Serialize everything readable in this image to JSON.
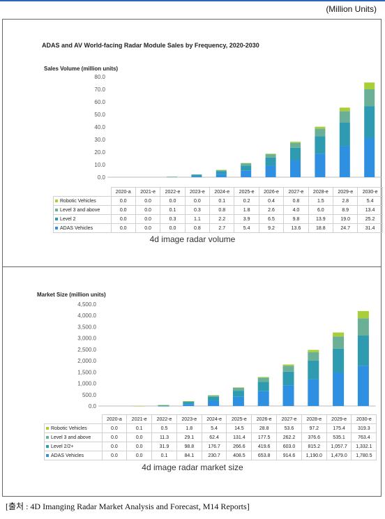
{
  "header": {
    "units": "(Million Units)"
  },
  "source": "[출처 : 4D Imanging Radar Market Analysis and Forecast, M14 Reports]",
  "colors": {
    "robotic": "#a8cf3a",
    "level3": "#6bb096",
    "level2": "#2f9bb0",
    "adas": "#2f8fe0"
  },
  "chart_data": [
    {
      "type": "bar",
      "stacked": true,
      "title": "ADAS and AV World-facing Radar Module Sales by Frequency, 2020-2030",
      "ylabel": "Sales Volume (million units)",
      "ylim": [
        0,
        80
      ],
      "yticks": [
        "0.0",
        "10.0",
        "20.0",
        "30.0",
        "40.0",
        "50.0",
        "60.0",
        "70.0",
        "80.0"
      ],
      "grid": false,
      "legend": "table-left",
      "categories": [
        "2020-a",
        "2021-e",
        "2022-e",
        "2023-e",
        "2024-e",
        "2025-e",
        "2026-e",
        "2027-e",
        "2028-e",
        "2029-e",
        "2030-e"
      ],
      "series": [
        {
          "name": "Robotic Vehicles",
          "values": [
            0.0,
            0.0,
            0.0,
            0.0,
            0.1,
            0.2,
            0.4,
            0.8,
            1.5,
            2.8,
            5.4
          ],
          "labels": [
            "0.0",
            "0.0",
            "0.0",
            "0.0",
            "0.1",
            "0.2",
            "0.4",
            "0.8",
            "1.5",
            "2.8",
            "5.4"
          ]
        },
        {
          "name": "Level 3 and above",
          "values": [
            0.0,
            0.0,
            0.1,
            0.3,
            0.8,
            1.8,
            2.6,
            4.0,
            6.0,
            8.9,
            13.4
          ],
          "labels": [
            "0.0",
            "0.0",
            "0.1",
            "0.3",
            "0.8",
            "1.8",
            "2.6",
            "4.0",
            "6.0",
            "8.9",
            "13.4"
          ]
        },
        {
          "name": "Level 2",
          "values": [
            0.0,
            0.0,
            0.3,
            1.1,
            2.2,
            3.9,
            6.5,
            9.8,
            13.9,
            19.0,
            25.2
          ],
          "labels": [
            "0.0",
            "0.0",
            "0.3",
            "1.1",
            "2.2",
            "3.9",
            "6.5",
            "9.8",
            "13.9",
            "19.0",
            "25.2"
          ]
        },
        {
          "name": "ADAS Vehicles",
          "values": [
            0.0,
            0.0,
            0.0,
            0.8,
            2.7,
            5.4,
            9.2,
            13.6,
            18.8,
            24.7,
            31.4
          ],
          "labels": [
            "0.0",
            "0.0",
            "0.0",
            "0.8",
            "2.7",
            "5.4",
            "9.2",
            "13.6",
            "18.8",
            "24.7",
            "31.4"
          ]
        }
      ],
      "caption": "4d image radar volume"
    },
    {
      "type": "bar",
      "stacked": true,
      "ylabel": "Market Size (million units)",
      "ylim": [
        0,
        4500
      ],
      "yticks": [
        "0.0",
        "500.0",
        "1,000.0",
        "1,500.0",
        "2,000.0",
        "2,500.0",
        "3,000.0",
        "3,500.0",
        "4,000.0",
        "4,500.0"
      ],
      "grid": false,
      "legend": "table-left",
      "categories": [
        "2020-a",
        "2021-e",
        "2022-e",
        "2023-e",
        "2024-e",
        "2025-e",
        "2026-e",
        "2027-e",
        "2028-e",
        "2029-e",
        "2030-e"
      ],
      "series": [
        {
          "name": "Robotic Vehicles",
          "values": [
            0.0,
            0.1,
            0.5,
            1.8,
            5.4,
            14.5,
            28.8,
            53.6,
            97.2,
            175.4,
            319.3
          ],
          "labels": [
            "0.0",
            "0.1",
            "0.5",
            "1.8",
            "5.4",
            "14.5",
            "28.8",
            "53.6",
            "97.2",
            "175.4",
            "319.3"
          ]
        },
        {
          "name": "Level 3 and above",
          "values": [
            0.0,
            0.0,
            11.3,
            29.1,
            62.4,
            131.4,
            177.5,
            262.2,
            376.6,
            535.1,
            763.4
          ],
          "labels": [
            "0.0",
            "0.0",
            "11.3",
            "29.1",
            "62.4",
            "131.4",
            "177.5",
            "262.2",
            "376.6",
            "535.1",
            "763.4"
          ]
        },
        {
          "name": "Level 2/2+",
          "values": [
            0.0,
            0.0,
            31.9,
            98.8,
            176.7,
            266.6,
            419.6,
            603.0,
            815.2,
            1057.7,
            1332.1
          ],
          "labels": [
            "0.0",
            "0.0",
            "31.9",
            "98.8",
            "176.7",
            "266.6",
            "419.6",
            "603.0",
            "815.2",
            "1,057.7",
            "1,332.1"
          ]
        },
        {
          "name": "ADAS Vehicles",
          "values": [
            0.0,
            0.0,
            0.1,
            84.1,
            230.7,
            408.5,
            653.8,
            914.6,
            1190.0,
            1479.0,
            1780.5
          ],
          "labels": [
            "0.0",
            "0.0",
            "0.1",
            "84.1",
            "230.7",
            "408.5",
            "653.8",
            "914.6",
            "1,190.0",
            "1,479.0",
            "1,780.5"
          ]
        }
      ],
      "caption": "4d image radar market size"
    }
  ]
}
